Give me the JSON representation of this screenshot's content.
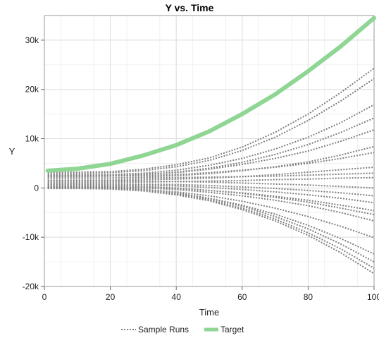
{
  "chart_data": {
    "type": "line",
    "title": "Y vs. Time",
    "xlabel": "Time",
    "ylabel": "Y",
    "xlim": [
      0,
      100
    ],
    "ylim": [
      -20000,
      35000
    ],
    "x_ticks": [
      0,
      20,
      40,
      60,
      80,
      100
    ],
    "x_tick_labels": [
      "0",
      "20",
      "40",
      "60",
      "80",
      "100"
    ],
    "y_ticks": [
      -20000,
      -10000,
      0,
      10000,
      20000,
      30000
    ],
    "y_tick_labels": [
      "-20k",
      "-10k",
      "0",
      "10k",
      "20k",
      "30k"
    ],
    "grid": true,
    "legend_position": "bottom",
    "legend": [
      "Sample Runs",
      "Target"
    ],
    "x": [
      1,
      10,
      20,
      30,
      40,
      50,
      60,
      70,
      80,
      90,
      100
    ],
    "series": [
      {
        "name": "Target",
        "style": "thick-solid",
        "color": "#8fd694",
        "values": [
          3500,
          3900,
          4900,
          6600,
          8700,
          11500,
          15000,
          19000,
          23700,
          28800,
          34500
        ]
      },
      {
        "name": "Sample Runs",
        "style": "dotted",
        "color": "#7f7f7f",
        "runs": [
          [
            3200,
            3200,
            3300,
            3800,
            4700,
            6100,
            8300,
            11300,
            15000,
            19400,
            24300
          ],
          [
            2900,
            2900,
            3100,
            3500,
            4300,
            5600,
            7600,
            10300,
            13700,
            17700,
            22200
          ],
          [
            2600,
            2600,
            2700,
            3000,
            3600,
            4600,
            6000,
            7900,
            10300,
            13300,
            16900
          ],
          [
            2300,
            2300,
            2400,
            2700,
            3200,
            4000,
            5200,
            6800,
            8800,
            11300,
            14200
          ],
          [
            2600,
            2600,
            2600,
            2800,
            3100,
            3800,
            4800,
            6000,
            7500,
            9500,
            11800
          ],
          [
            2000,
            2000,
            2000,
            2200,
            2500,
            2900,
            3500,
            4300,
            5300,
            6700,
            8400
          ],
          [
            2400,
            2400,
            2400,
            2500,
            2700,
            3100,
            3600,
            4200,
            5000,
            6000,
            7200
          ],
          [
            1600,
            1600,
            1600,
            1700,
            1800,
            2000,
            2300,
            2700,
            3200,
            3700,
            4200
          ],
          [
            2000,
            2000,
            2000,
            2000,
            2100,
            2200,
            2300,
            2400,
            2600,
            2800,
            3000
          ],
          [
            1200,
            1200,
            1200,
            1200,
            1300,
            1400,
            1500,
            1700,
            1800,
            2000,
            2100
          ],
          [
            1500,
            1500,
            1500,
            1400,
            1300,
            1200,
            1000,
            800,
            600,
            300,
            0
          ],
          [
            900,
            900,
            900,
            800,
            700,
            500,
            200,
            -100,
            -500,
            -1000,
            -1600
          ],
          [
            800,
            800,
            700,
            600,
            400,
            100,
            -300,
            -800,
            -1400,
            -2100,
            -3000
          ],
          [
            400,
            400,
            300,
            200,
            -100,
            -500,
            -1000,
            -1700,
            -2500,
            -3500,
            -4600
          ],
          [
            600,
            600,
            500,
            300,
            0,
            -500,
            -1100,
            -1900,
            -2900,
            -4100,
            -5400
          ],
          [
            300,
            300,
            200,
            0,
            -300,
            -900,
            -1600,
            -2500,
            -3600,
            -5000,
            -6700
          ],
          [
            100,
            100,
            0,
            -300,
            -800,
            -1600,
            -2700,
            -4100,
            -5800,
            -7800,
            -10100
          ],
          [
            0,
            0,
            -100,
            -500,
            -1100,
            -2100,
            -3500,
            -5300,
            -7600,
            -10300,
            -13400
          ],
          [
            200,
            200,
            100,
            -300,
            -1000,
            -2100,
            -3700,
            -5800,
            -8300,
            -11400,
            -15000
          ],
          [
            -100,
            -100,
            -200,
            -600,
            -1400,
            -2600,
            -4400,
            -6700,
            -9600,
            -13200,
            -17400
          ],
          [
            100,
            100,
            0,
            -400,
            -1200,
            -2400,
            -4100,
            -6300,
            -9100,
            -12400,
            -16300
          ]
        ]
      }
    ]
  }
}
